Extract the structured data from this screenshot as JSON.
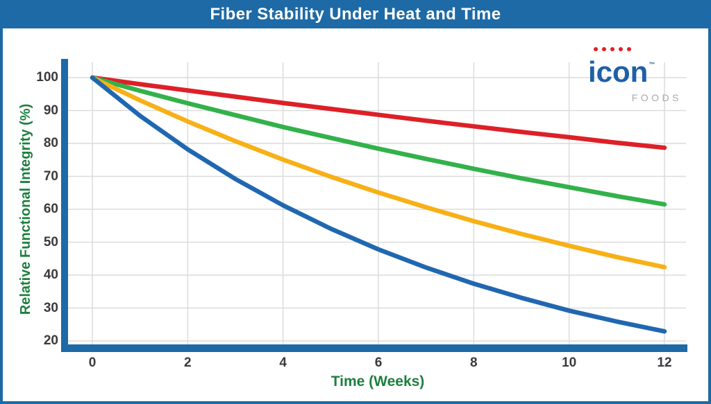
{
  "header": {
    "title": "Fiber Stability Under Heat and Time"
  },
  "logo": {
    "brand": "icon",
    "tm": "™",
    "sub": "FOODS"
  },
  "colors": {
    "banner_blue": "#1d6aa6",
    "axis_bar_blue": "#1d6aa6",
    "grid_gray": "#dcdcdc",
    "tick_text": "#3a3a3c",
    "axis_label_green": "#1c7f3e",
    "logo_blue": "#1e5fa8",
    "logo_gray": "#a7a9ac",
    "logo_dot_red": "#e01f26"
  },
  "chart_data": {
    "type": "line",
    "title": "Fiber Stability Under Heat and Time",
    "xlabel": "Time (Weeks)",
    "ylabel": "Relative Functional Integrity (%)",
    "xlim": [
      0,
      12
    ],
    "ylim": [
      20,
      100
    ],
    "x_ticks": [
      0,
      2,
      4,
      6,
      8,
      10,
      12
    ],
    "y_ticks": [
      100,
      90,
      80,
      70,
      60,
      50,
      40,
      30,
      20
    ],
    "grid": true,
    "legend": "none",
    "x": [
      0,
      1,
      2,
      3,
      4,
      5,
      6,
      7,
      8,
      9,
      10,
      11,
      12
    ],
    "series": [
      {
        "name": "red",
        "color": "#dd2028",
        "values": [
          100,
          98.0,
          96.1,
          94.2,
          92.3,
          90.5,
          88.7,
          86.9,
          85.2,
          83.5,
          81.9,
          80.2,
          78.7
        ]
      },
      {
        "name": "green",
        "color": "#33b14a",
        "values": [
          100,
          96.0,
          92.2,
          88.6,
          85.0,
          81.7,
          78.4,
          75.3,
          72.3,
          69.4,
          66.7,
          64.0,
          61.5
        ]
      },
      {
        "name": "yellow",
        "color": "#f8b017",
        "values": [
          100,
          93.1,
          86.7,
          80.7,
          75.1,
          69.9,
          65.1,
          60.6,
          56.4,
          52.5,
          48.9,
          45.5,
          42.4
        ]
      },
      {
        "name": "blue",
        "color": "#2067b1",
        "values": [
          100,
          88.4,
          78.2,
          69.2,
          61.2,
          54.1,
          47.8,
          42.3,
          37.4,
          33.1,
          29.2,
          25.9,
          22.9
        ]
      }
    ]
  }
}
